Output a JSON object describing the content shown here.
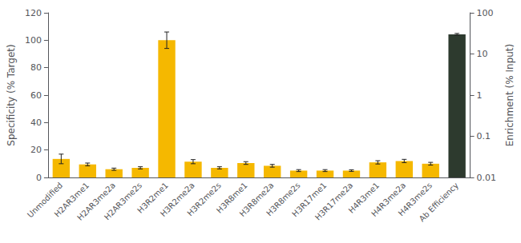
{
  "chart_data": {
    "type": "bar",
    "categories": [
      "Unmodified",
      "H2AR3me1",
      "H2AR3me2a",
      "H2AR3me2s",
      "H3R2me1",
      "H3R2me2a",
      "H3R2me2s",
      "H3R8me1",
      "H3R8me2a",
      "H3R8me2s",
      "H3R17me1",
      "H3R17me2a",
      "H4R3me1",
      "H4R3me2a",
      "H4R3me2s",
      "Ab Efficiency"
    ],
    "series": [
      {
        "color": "#F5B800",
        "values": [
          13.5,
          9.5,
          6.0,
          7.0,
          100.0,
          11.5,
          7.0,
          10.5,
          8.5,
          5.0,
          5.0,
          5.0,
          11.0,
          12.0,
          10.0,
          null
        ],
        "errors": [
          3.5,
          1.0,
          0.8,
          0.8,
          6.0,
          1.5,
          0.8,
          1.0,
          1.0,
          0.7,
          0.7,
          0.6,
          1.2,
          1.2,
          1.0,
          null
        ]
      },
      {
        "color": "#2D3A2E",
        "axis": "y2",
        "values": [
          null,
          null,
          null,
          null,
          null,
          null,
          null,
          null,
          null,
          null,
          null,
          null,
          null,
          null,
          null,
          30.0
        ],
        "errors": [
          null,
          null,
          null,
          null,
          null,
          null,
          null,
          null,
          null,
          null,
          null,
          null,
          null,
          null,
          null,
          1.5
        ]
      }
    ],
    "ylabel": "Specificity (% Target)",
    "y2label": "Enrichment (% Input)",
    "ylim": [
      0,
      120
    ],
    "yticks": [
      0,
      20,
      40,
      60,
      80,
      100,
      120
    ],
    "y2lim": [
      0.01,
      100
    ],
    "y2ticks": [
      0.01,
      0.1,
      1,
      10,
      100
    ],
    "log": "y2",
    "grid": false
  }
}
